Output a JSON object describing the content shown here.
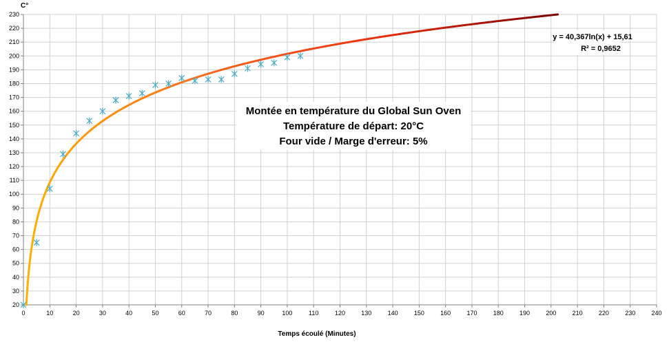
{
  "chart_data": {
    "type": "scatter",
    "ylabel": "C°",
    "xlabel": "Temps écoulé (Minutes)",
    "xlim": [
      0,
      240
    ],
    "ylim": [
      20,
      230
    ],
    "x_ticks": [
      0,
      10,
      20,
      30,
      40,
      50,
      60,
      70,
      80,
      90,
      100,
      110,
      120,
      130,
      140,
      150,
      160,
      170,
      180,
      190,
      200,
      210,
      220,
      230,
      240
    ],
    "y_ticks": [
      20,
      30,
      40,
      50,
      60,
      70,
      80,
      90,
      100,
      110,
      120,
      130,
      140,
      150,
      160,
      170,
      180,
      190,
      200,
      210,
      220,
      230
    ],
    "grid": true,
    "series": [
      {
        "marker": "asterisk",
        "color": "#4bacc6",
        "points": [
          [
            0,
            20
          ],
          [
            5,
            65
          ],
          [
            10,
            104
          ],
          [
            15,
            129
          ],
          [
            20,
            144
          ],
          [
            25,
            153
          ],
          [
            30,
            160
          ],
          [
            35,
            168
          ],
          [
            40,
            171
          ],
          [
            45,
            173
          ],
          [
            50,
            179
          ],
          [
            55,
            180
          ],
          [
            60,
            184
          ],
          [
            65,
            182
          ],
          [
            70,
            183
          ],
          [
            75,
            183
          ],
          [
            80,
            187
          ],
          [
            85,
            191
          ],
          [
            90,
            194
          ],
          [
            95,
            195
          ],
          [
            100,
            199
          ],
          [
            105,
            200
          ]
        ]
      }
    ],
    "trendline": {
      "type": "logarithmic",
      "a": 40.367,
      "b": 15.61,
      "gradient_colors": [
        "#ffb000",
        "#ff6a1a",
        "#e83010",
        "#7a0000"
      ]
    },
    "equation_lines": [
      "y = 40,367ln(x) + 15,61",
      "R² = 0,9652"
    ],
    "annotation_lines": [
      "Montée en température du Global Sun Oven",
      "Température de départ: 20°C",
      "Four vide / Marge d'erreur: 5%"
    ],
    "gridline_color": "#d0d0d0"
  }
}
